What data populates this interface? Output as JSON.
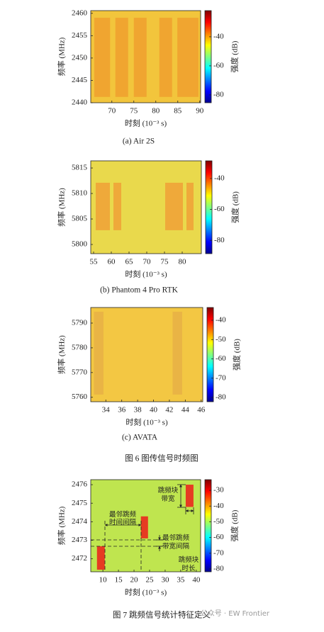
{
  "chart_data": [
    {
      "type": "heatmap",
      "title": "(a) Air 2S",
      "x_label": "时刻 (10⁻³ s)",
      "y_label": "频率 (MHz)",
      "colorbar_label": "强度 (dB)",
      "xlim": [
        65.2,
        90.2
      ],
      "xticks": [
        70,
        75,
        80,
        85,
        90
      ],
      "ylim": [
        2440,
        2460.6
      ],
      "yticks": [
        2440,
        2445,
        2450,
        2455,
        2460
      ],
      "clim": [
        -85.4,
        -22
      ],
      "cticks": [
        -40,
        -60,
        -80
      ],
      "background": "#f2c53c",
      "block_color": "#f0a530",
      "blocks": [
        {
          "x": [
            66.0,
            69.6
          ],
          "y": [
            2441.3,
            2459.0
          ]
        },
        {
          "x": [
            70.8,
            73.7
          ],
          "y": [
            2441.3,
            2459.0
          ]
        },
        {
          "x": [
            75.0,
            77.9
          ],
          "y": [
            2441.3,
            2459.0
          ]
        },
        {
          "x": [
            80.8,
            83.7
          ],
          "y": [
            2441.3,
            2459.0
          ]
        },
        {
          "x": [
            84.9,
            89.7
          ],
          "y": [
            2441.3,
            2459.0
          ]
        }
      ]
    },
    {
      "type": "heatmap",
      "title": "(b) Phantom 4 Pro RTK",
      "x_label": "时刻 (10⁻³ s)",
      "y_label": "频率 (MHz)",
      "colorbar_label": "强度 (dB)",
      "xlim": [
        54.2,
        85.4
      ],
      "xticks": [
        55,
        60,
        65,
        70,
        75,
        80
      ],
      "ylim": [
        5798.2,
        5816.4
      ],
      "yticks": [
        5800,
        5805,
        5810,
        5815
      ],
      "clim": [
        -88.6,
        -28.6
      ],
      "cticks": [
        -40,
        -60,
        -80
      ],
      "background": "#e9d94c",
      "block_color": "#efa93a",
      "blocks": [
        {
          "x": [
            55.6,
            59.6
          ],
          "y": [
            5802.8,
            5812.1
          ]
        },
        {
          "x": [
            60.6,
            62.8
          ],
          "y": [
            5802.8,
            5812.1
          ]
        },
        {
          "x": [
            75.2,
            80.2
          ],
          "y": [
            5802.8,
            5812.1
          ]
        },
        {
          "x": [
            81.2,
            83.2
          ],
          "y": [
            5802.8,
            5812.1
          ]
        }
      ]
    },
    {
      "type": "heatmap",
      "title": "(c) AVATA",
      "x_label": "时刻 (10⁻³ s)",
      "y_label": "频率 (MHz)",
      "colorbar_label": "强度 (dB)",
      "xlim": [
        32.1,
        46.2
      ],
      "xticks": [
        34,
        36,
        38,
        40,
        42,
        44,
        46
      ],
      "ylim": [
        5758.2,
        5796.3
      ],
      "yticks": [
        5760,
        5770,
        5780,
        5790
      ],
      "clim": [
        -82.2,
        -33.4
      ],
      "cticks": [
        -40,
        -50,
        -60,
        -70,
        -80
      ],
      "background": "#f3c743",
      "block_color": "#e9b445",
      "blocks": [
        {
          "x": [
            32.5,
            33.7
          ],
          "y": [
            5761.1,
            5794.6
          ]
        },
        {
          "x": [
            42.4,
            43.6
          ],
          "y": [
            5761.1,
            5794.6
          ]
        }
      ]
    },
    {
      "type": "heatmap",
      "x_label": "时刻 (10⁻³ s)",
      "y_label": "频率 (MHz)",
      "colorbar_label": "强度 (dB)",
      "xlim": [
        6.1,
        41.4
      ],
      "xticks": [
        10,
        15,
        20,
        25,
        30,
        35,
        40
      ],
      "ylim": [
        2471.3,
        2476.27
      ],
      "yticks": [
        2472,
        2473,
        2474,
        2475,
        2476
      ],
      "clim": [
        -81.8,
        -23.2
      ],
      "cticks": [
        -30,
        -40,
        -50,
        -60,
        -70,
        -80
      ],
      "background": "#bfe54f",
      "block_color": "#e63b22",
      "blocks": [
        {
          "x": [
            8.1,
            10.6
          ],
          "y": [
            2471.41,
            2472.68
          ]
        },
        {
          "x": [
            22.2,
            24.5
          ],
          "y": [
            2473.1,
            2474.29
          ]
        },
        {
          "x": [
            36.6,
            39.1
          ],
          "y": [
            2474.8,
            2476.0
          ]
        }
      ],
      "annotations": [
        {
          "lines": [
            "最邻跳频",
            "时间间隔"
          ]
        },
        {
          "lines": [
            "跳频块",
            "带宽"
          ]
        },
        {
          "lines": [
            "最邻跳频",
            "带宽间隔"
          ]
        },
        {
          "lines": [
            "跳频块",
            "时长"
          ]
        }
      ]
    }
  ],
  "figure_captions": [
    "图 6 图传信号时频图",
    "图 7 跳频信号统计特征定义"
  ],
  "watermark": "公众号 · EW Frontier"
}
